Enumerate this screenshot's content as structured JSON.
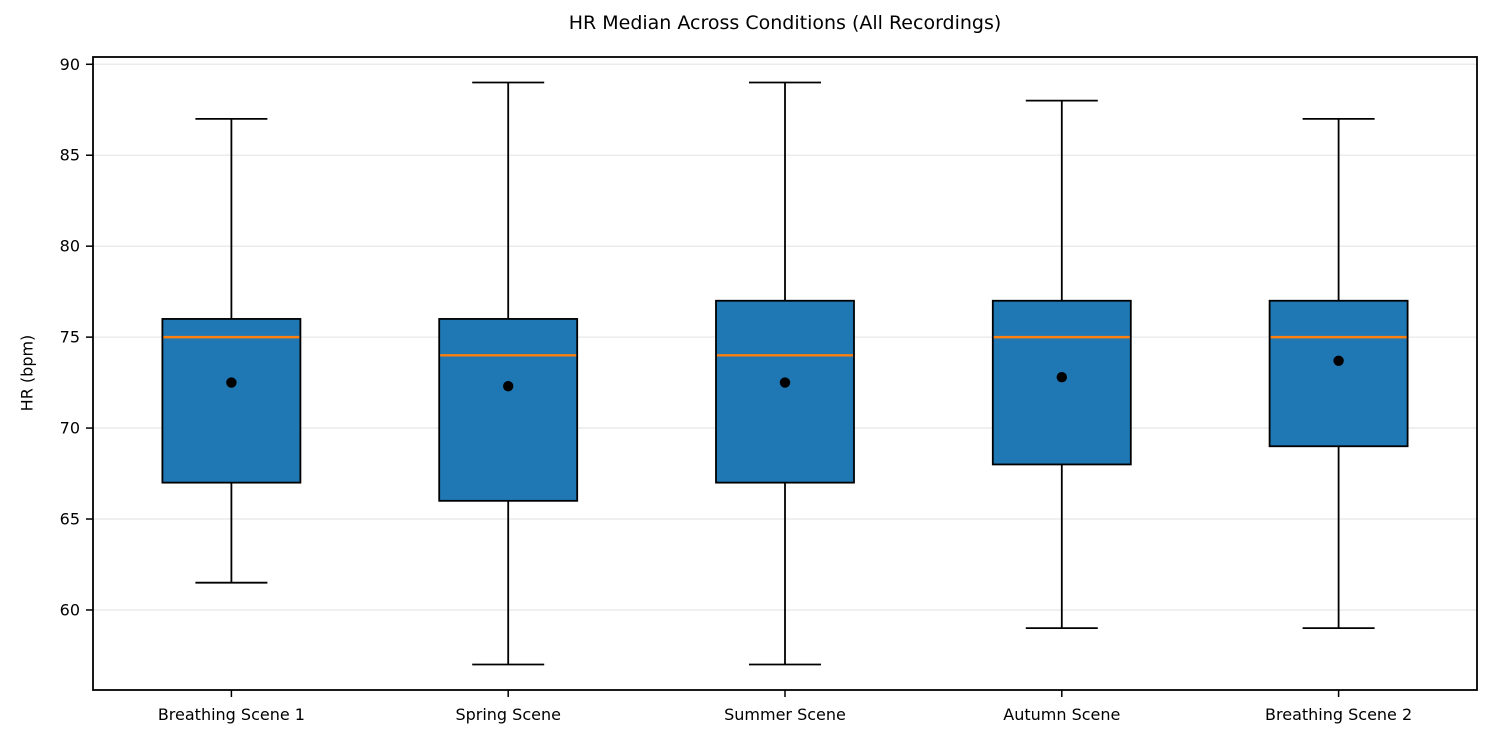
{
  "chart_data": {
    "type": "box",
    "title": "HR Median Across Conditions (All Recordings)",
    "ylabel": "HR (bpm)",
    "xlabel": "",
    "categories": [
      "Breathing Scene 1",
      "Spring Scene",
      "Summer Scene",
      "Autumn Scene",
      "Breathing Scene 2"
    ],
    "boxes": [
      {
        "label": "Breathing Scene 1",
        "whisker_low": 61.5,
        "q1": 67,
        "median": 75,
        "q3": 76,
        "whisker_high": 87,
        "mean": 72.5
      },
      {
        "label": "Spring Scene",
        "whisker_low": 57,
        "q1": 66,
        "median": 74,
        "q3": 76,
        "whisker_high": 89,
        "mean": 72.3
      },
      {
        "label": "Summer Scene",
        "whisker_low": 57,
        "q1": 67,
        "median": 74,
        "q3": 77,
        "whisker_high": 89,
        "mean": 72.5
      },
      {
        "label": "Autumn Scene",
        "whisker_low": 59,
        "q1": 68,
        "median": 75,
        "q3": 77,
        "whisker_high": 88,
        "mean": 72.8
      },
      {
        "label": "Breathing Scene 2",
        "whisker_low": 59,
        "q1": 69,
        "median": 75,
        "q3": 77,
        "whisker_high": 87,
        "mean": 73.7
      }
    ],
    "yticks": [
      60,
      65,
      70,
      75,
      80,
      85,
      90
    ],
    "ylim": [
      55.6,
      90.4
    ],
    "grid": "horizontal",
    "legend": "none",
    "colors": {
      "box_fill": "#1f77b4",
      "box_edge": "#000000",
      "median_line": "#ff7f0e",
      "whisker": "#000000",
      "mean_marker": "#000000",
      "grid": "#e8e8e8",
      "spine": "#000000",
      "tick_text": "#000000",
      "background": "#ffffff"
    }
  }
}
